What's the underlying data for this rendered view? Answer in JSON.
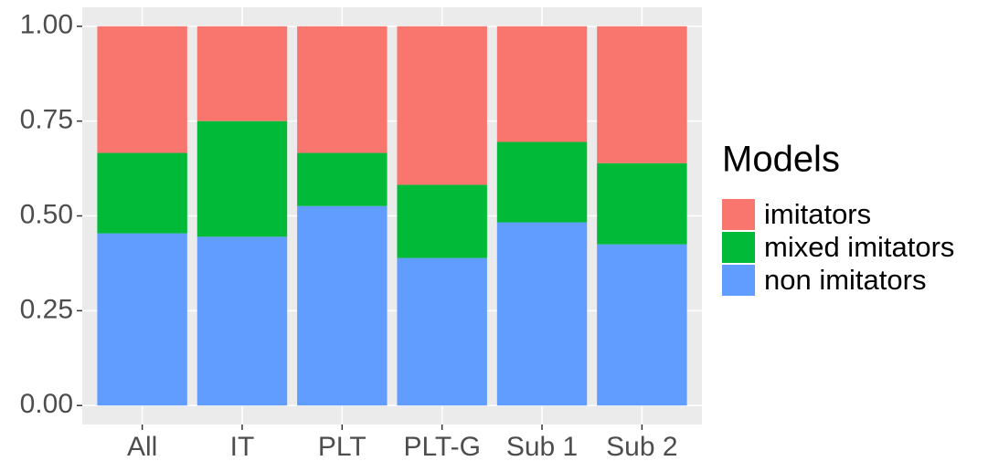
{
  "chart_data": {
    "type": "stacked_bar",
    "categories": [
      "All",
      "IT",
      "PLT",
      "PLT-G",
      "Sub 1",
      "Sub 2"
    ],
    "series": [
      {
        "name": "imitators",
        "color": "#F8766D",
        "values": [
          0.334,
          0.25,
          0.334,
          0.418,
          0.305,
          0.361
        ]
      },
      {
        "name": "mixed imitators",
        "color": "#00BA38",
        "values": [
          0.212,
          0.305,
          0.14,
          0.193,
          0.212,
          0.214
        ]
      },
      {
        "name": "non imitators",
        "color": "#619CFF",
        "values": [
          0.454,
          0.445,
          0.526,
          0.389,
          0.483,
          0.425
        ]
      }
    ],
    "ylim": [
      -0.05,
      1.05
    ],
    "yticks": [
      {
        "value": 0,
        "label": "0.00"
      },
      {
        "value": 0.25,
        "label": "0.25"
      },
      {
        "value": 0.5,
        "label": "0.50"
      },
      {
        "value": 0.75,
        "label": "0.75"
      },
      {
        "value": 1,
        "label": "1.00"
      }
    ],
    "grid": true,
    "legend_title": "Models",
    "legend_position": "right"
  }
}
